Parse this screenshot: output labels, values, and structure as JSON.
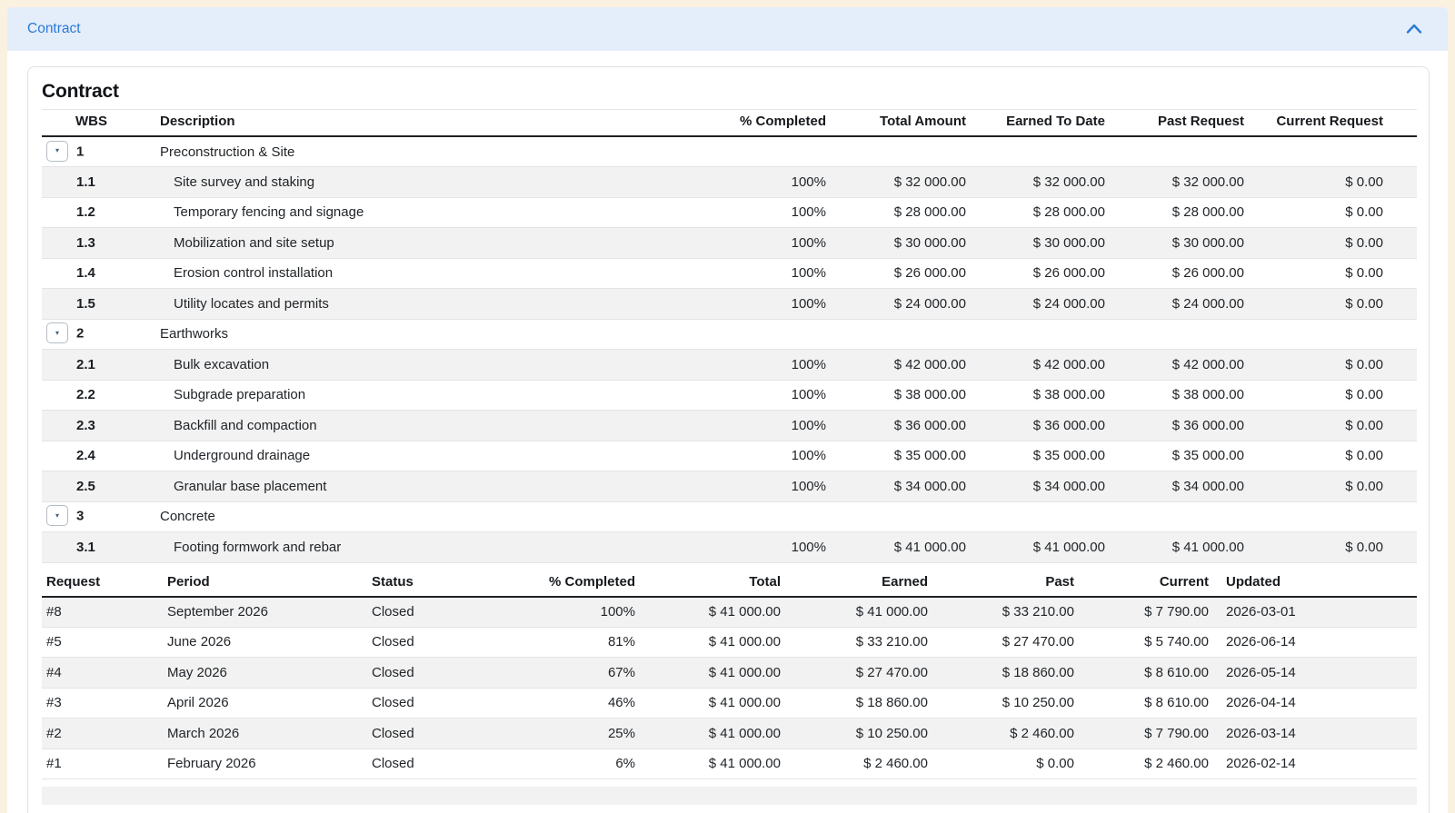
{
  "colors": {
    "page_bg": "#faf1e0",
    "header_bg": "#e4edfa",
    "accent": "#2a7ad4",
    "stripe": "#f2f2f2",
    "card_border": "#dee2e6",
    "text": "#212529",
    "dark_rule": "#1d2125"
  },
  "accordion": {
    "title": "Contract",
    "chevron_icon": "chevron-up"
  },
  "panel": {
    "title": "Contract"
  },
  "wbs_table": {
    "headers": {
      "wbs": "WBS",
      "description": "Description",
      "pct": "% Completed",
      "total": "Total Amount",
      "earned": "Earned To Date",
      "past": "Past Request",
      "current": "Current Request"
    },
    "expander_glyph": "▾",
    "rows": [
      {
        "wbs": "1",
        "description": "Preconstruction & Site",
        "is_parent": true,
        "pct": "",
        "total": "",
        "earned": "",
        "past": "",
        "current": ""
      },
      {
        "wbs": "1.1",
        "description": "Site survey and staking",
        "is_parent": false,
        "pct": "100%",
        "total": "$ 32 000.00",
        "earned": "$ 32 000.00",
        "past": "$ 32 000.00",
        "current": "$ 0.00"
      },
      {
        "wbs": "1.2",
        "description": "Temporary fencing and signage",
        "is_parent": false,
        "pct": "100%",
        "total": "$ 28 000.00",
        "earned": "$ 28 000.00",
        "past": "$ 28 000.00",
        "current": "$ 0.00"
      },
      {
        "wbs": "1.3",
        "description": "Mobilization and site setup",
        "is_parent": false,
        "pct": "100%",
        "total": "$ 30 000.00",
        "earned": "$ 30 000.00",
        "past": "$ 30 000.00",
        "current": "$ 0.00"
      },
      {
        "wbs": "1.4",
        "description": "Erosion control installation",
        "is_parent": false,
        "pct": "100%",
        "total": "$ 26 000.00",
        "earned": "$ 26 000.00",
        "past": "$ 26 000.00",
        "current": "$ 0.00"
      },
      {
        "wbs": "1.5",
        "description": "Utility locates and permits",
        "is_parent": false,
        "pct": "100%",
        "total": "$ 24 000.00",
        "earned": "$ 24 000.00",
        "past": "$ 24 000.00",
        "current": "$ 0.00"
      },
      {
        "wbs": "2",
        "description": "Earthworks",
        "is_parent": true,
        "pct": "",
        "total": "",
        "earned": "",
        "past": "",
        "current": ""
      },
      {
        "wbs": "2.1",
        "description": "Bulk excavation",
        "is_parent": false,
        "pct": "100%",
        "total": "$ 42 000.00",
        "earned": "$ 42 000.00",
        "past": "$ 42 000.00",
        "current": "$ 0.00"
      },
      {
        "wbs": "2.2",
        "description": "Subgrade preparation",
        "is_parent": false,
        "pct": "100%",
        "total": "$ 38 000.00",
        "earned": "$ 38 000.00",
        "past": "$ 38 000.00",
        "current": "$ 0.00"
      },
      {
        "wbs": "2.3",
        "description": "Backfill and compaction",
        "is_parent": false,
        "pct": "100%",
        "total": "$ 36 000.00",
        "earned": "$ 36 000.00",
        "past": "$ 36 000.00",
        "current": "$ 0.00"
      },
      {
        "wbs": "2.4",
        "description": "Underground drainage",
        "is_parent": false,
        "pct": "100%",
        "total": "$ 35 000.00",
        "earned": "$ 35 000.00",
        "past": "$ 35 000.00",
        "current": "$ 0.00"
      },
      {
        "wbs": "2.5",
        "description": "Granular base placement",
        "is_parent": false,
        "pct": "100%",
        "total": "$ 34 000.00",
        "earned": "$ 34 000.00",
        "past": "$ 34 000.00",
        "current": "$ 0.00"
      },
      {
        "wbs": "3",
        "description": "Concrete",
        "is_parent": true,
        "pct": "",
        "total": "",
        "earned": "",
        "past": "",
        "current": ""
      },
      {
        "wbs": "3.1",
        "description": "Footing formwork and rebar",
        "is_parent": false,
        "pct": "100%",
        "total": "$ 41 000.00",
        "earned": "$ 41 000.00",
        "past": "$ 41 000.00",
        "current": "$ 0.00"
      }
    ]
  },
  "request_table": {
    "headers": {
      "request": "Request",
      "period": "Period",
      "status": "Status",
      "pct": "% Completed",
      "total": "Total",
      "earned": "Earned",
      "past": "Past",
      "current": "Current",
      "updated": "Updated"
    },
    "rows": [
      {
        "request": "#8",
        "period": "September 2026",
        "status": "Closed",
        "pct": "100%",
        "total": "$ 41 000.00",
        "earned": "$ 41 000.00",
        "past": "$ 33 210.00",
        "current": "$ 7 790.00",
        "updated": "2026-03-01"
      },
      {
        "request": "#5",
        "period": "June 2026",
        "status": "Closed",
        "pct": "81%",
        "total": "$ 41 000.00",
        "earned": "$ 33 210.00",
        "past": "$ 27 470.00",
        "current": "$ 5 740.00",
        "updated": "2026-06-14"
      },
      {
        "request": "#4",
        "period": "May 2026",
        "status": "Closed",
        "pct": "67%",
        "total": "$ 41 000.00",
        "earned": "$ 27 470.00",
        "past": "$ 18 860.00",
        "current": "$ 8 610.00",
        "updated": "2026-05-14"
      },
      {
        "request": "#3",
        "period": "April 2026",
        "status": "Closed",
        "pct": "46%",
        "total": "$ 41 000.00",
        "earned": "$ 18 860.00",
        "past": "$ 10 250.00",
        "current": "$ 8 610.00",
        "updated": "2026-04-14"
      },
      {
        "request": "#2",
        "period": "March 2026",
        "status": "Closed",
        "pct": "25%",
        "total": "$ 41 000.00",
        "earned": "$ 10 250.00",
        "past": "$ 2 460.00",
        "current": "$ 7 790.00",
        "updated": "2026-03-14"
      },
      {
        "request": "#1",
        "period": "February 2026",
        "status": "Closed",
        "pct": "6%",
        "total": "$ 41 000.00",
        "earned": "$ 2 460.00",
        "past": "$ 0.00",
        "current": "$ 2 460.00",
        "updated": "2026-02-14"
      }
    ]
  }
}
